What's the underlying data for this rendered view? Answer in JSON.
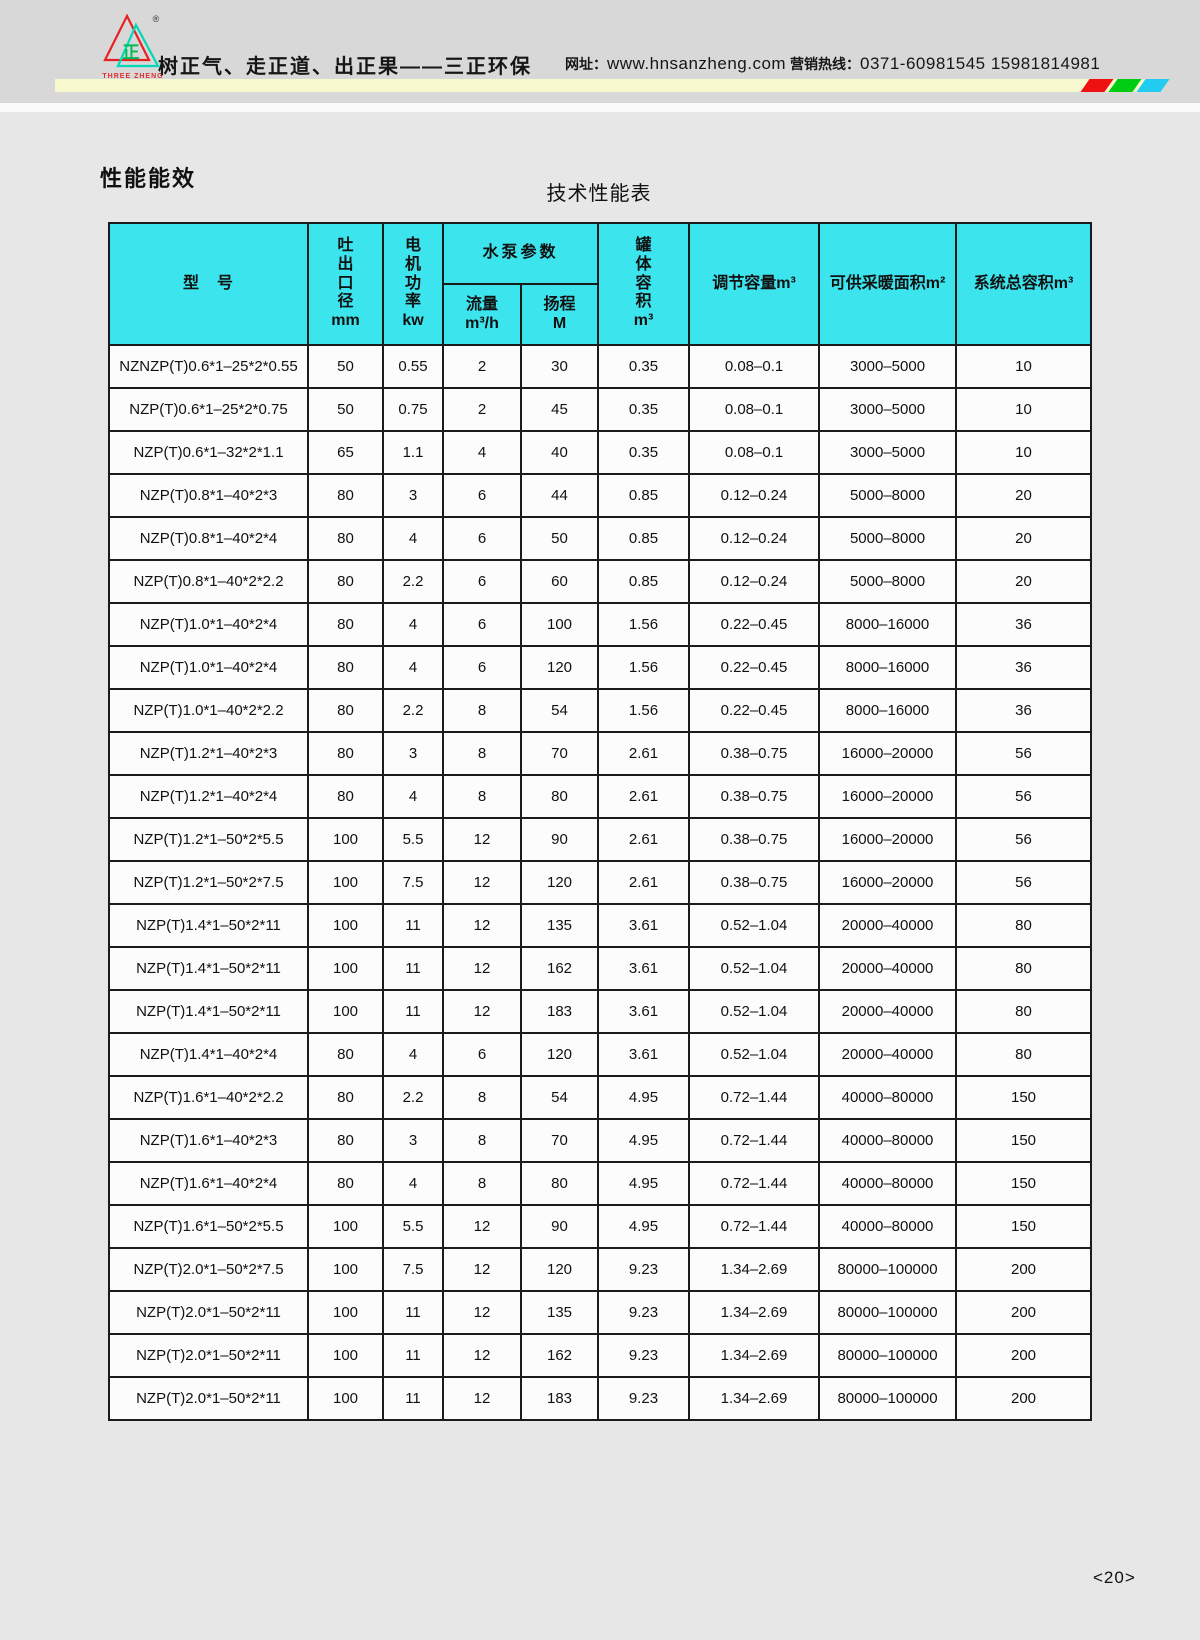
{
  "header": {
    "logo": {
      "brand_char": "正",
      "registered_mark": "®",
      "brand_text": "THREE ZHENG"
    },
    "slogan": "树正气、走正道、出正果——三正环保",
    "website_label": "网址：",
    "website": "www.hnsanzheng.com",
    "hotline_label": " 营销热线：",
    "hotline": "0371-60981545 15981814981",
    "colors": {
      "banner_gray": "#d8d8d8",
      "bar_yellow": "#f8f8cf",
      "stripe_red": "#ee1111",
      "stripe_green": "#00cc11",
      "stripe_cyan": "#22ccf0",
      "table_header_cyan": "#3ce4ee"
    }
  },
  "page": {
    "section_title": "性能能效",
    "page_number": "<20>"
  },
  "table": {
    "title": "技术性能表",
    "headers": {
      "model": "型　号",
      "outlet": "吐\n出\n口\n径\nmm",
      "power": "电\n机\n功\n率\nkw",
      "pump_group": "水泵参数",
      "flow": "流量\nm³/h",
      "head": "扬程\nM",
      "tank": "罐\n体\n容\n积\nm³",
      "adjust": "调节容量m³",
      "area": "可供采暖面积m²",
      "total": "系统总容积m³"
    },
    "rows": [
      [
        "NZNZP(T)0.6*1–25*2*0.55",
        "50",
        "0.55",
        "2",
        "30",
        "0.35",
        "0.08–0.1",
        "3000–5000",
        "10"
      ],
      [
        "NZP(T)0.6*1–25*2*0.75",
        "50",
        "0.75",
        "2",
        "45",
        "0.35",
        "0.08–0.1",
        "3000–5000",
        "10"
      ],
      [
        "NZP(T)0.6*1–32*2*1.1",
        "65",
        "1.1",
        "4",
        "40",
        "0.35",
        "0.08–0.1",
        "3000–5000",
        "10"
      ],
      [
        "NZP(T)0.8*1–40*2*3",
        "80",
        "3",
        "6",
        "44",
        "0.85",
        "0.12–0.24",
        "5000–8000",
        "20"
      ],
      [
        "NZP(T)0.8*1–40*2*4",
        "80",
        "4",
        "6",
        "50",
        "0.85",
        "0.12–0.24",
        "5000–8000",
        "20"
      ],
      [
        "NZP(T)0.8*1–40*2*2.2",
        "80",
        "2.2",
        "6",
        "60",
        "0.85",
        "0.12–0.24",
        "5000–8000",
        "20"
      ],
      [
        "NZP(T)1.0*1–40*2*4",
        "80",
        "4",
        "6",
        "100",
        "1.56",
        "0.22–0.45",
        "8000–16000",
        "36"
      ],
      [
        "NZP(T)1.0*1–40*2*4",
        "80",
        "4",
        "6",
        "120",
        "1.56",
        "0.22–0.45",
        "8000–16000",
        "36"
      ],
      [
        "NZP(T)1.0*1–40*2*2.2",
        "80",
        "2.2",
        "8",
        "54",
        "1.56",
        "0.22–0.45",
        "8000–16000",
        "36"
      ],
      [
        "NZP(T)1.2*1–40*2*3",
        "80",
        "3",
        "8",
        "70",
        "2.61",
        "0.38–0.75",
        "16000–20000",
        "56"
      ],
      [
        "NZP(T)1.2*1–40*2*4",
        "80",
        "4",
        "8",
        "80",
        "2.61",
        "0.38–0.75",
        "16000–20000",
        "56"
      ],
      [
        "NZP(T)1.2*1–50*2*5.5",
        "100",
        "5.5",
        "12",
        "90",
        "2.61",
        "0.38–0.75",
        "16000–20000",
        "56"
      ],
      [
        "NZP(T)1.2*1–50*2*7.5",
        "100",
        "7.5",
        "12",
        "120",
        "2.61",
        "0.38–0.75",
        "16000–20000",
        "56"
      ],
      [
        "NZP(T)1.4*1–50*2*11",
        "100",
        "11",
        "12",
        "135",
        "3.61",
        "0.52–1.04",
        "20000–40000",
        "80"
      ],
      [
        "NZP(T)1.4*1–50*2*11",
        "100",
        "11",
        "12",
        "162",
        "3.61",
        "0.52–1.04",
        "20000–40000",
        "80"
      ],
      [
        "NZP(T)1.4*1–50*2*11",
        "100",
        "11",
        "12",
        "183",
        "3.61",
        "0.52–1.04",
        "20000–40000",
        "80"
      ],
      [
        "NZP(T)1.4*1–40*2*4",
        "80",
        "4",
        "6",
        "120",
        "3.61",
        "0.52–1.04",
        "20000–40000",
        "80"
      ],
      [
        "NZP(T)1.6*1–40*2*2.2",
        "80",
        "2.2",
        "8",
        "54",
        "4.95",
        "0.72–1.44",
        "40000–80000",
        "150"
      ],
      [
        "NZP(T)1.6*1–40*2*3",
        "80",
        "3",
        "8",
        "70",
        "4.95",
        "0.72–1.44",
        "40000–80000",
        "150"
      ],
      [
        "NZP(T)1.6*1–40*2*4",
        "80",
        "4",
        "8",
        "80",
        "4.95",
        "0.72–1.44",
        "40000–80000",
        "150"
      ],
      [
        "NZP(T)1.6*1–50*2*5.5",
        "100",
        "5.5",
        "12",
        "90",
        "4.95",
        "0.72–1.44",
        "40000–80000",
        "150"
      ],
      [
        "NZP(T)2.0*1–50*2*7.5",
        "100",
        "7.5",
        "12",
        "120",
        "9.23",
        "1.34–2.69",
        "80000–100000",
        "200"
      ],
      [
        "NZP(T)2.0*1–50*2*11",
        "100",
        "11",
        "12",
        "135",
        "9.23",
        "1.34–2.69",
        "80000–100000",
        "200"
      ],
      [
        "NZP(T)2.0*1–50*2*11",
        "100",
        "11",
        "12",
        "162",
        "9.23",
        "1.34–2.69",
        "80000–100000",
        "200"
      ],
      [
        "NZP(T)2.0*1–50*2*11",
        "100",
        "11",
        "12",
        "183",
        "9.23",
        "1.34–2.69",
        "80000–100000",
        "200"
      ]
    ]
  }
}
